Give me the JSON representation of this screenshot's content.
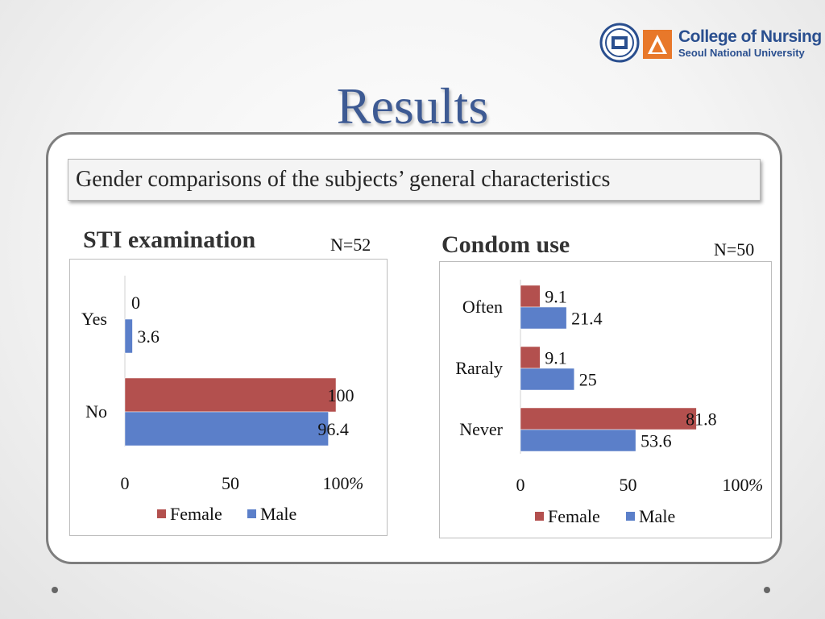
{
  "logo": {
    "line1": "College of Nursing",
    "line2": "Seoul National University"
  },
  "title": "Results",
  "subtitle": "Gender comparisons of the subjects’ general characteristics",
  "colors": {
    "female": "#b3504e",
    "male": "#5b7fc9",
    "title": "#3d5a93"
  },
  "chart_data": [
    {
      "type": "bar",
      "orientation": "horizontal",
      "title": "STI examination",
      "n_label": "N=52",
      "categories": [
        "Yes",
        "No"
      ],
      "series": [
        {
          "name": "Female",
          "values": [
            0,
            100
          ]
        },
        {
          "name": "Male",
          "values": [
            3.6,
            96.4
          ]
        }
      ],
      "data_labels": [
        [
          "0",
          "100"
        ],
        [
          "3.6",
          "96.4"
        ]
      ],
      "xlim": [
        0,
        100
      ],
      "x_ticks": [
        "0",
        "50",
        "100"
      ],
      "unit": "%",
      "legend": "bottom",
      "grid": false
    },
    {
      "type": "bar",
      "orientation": "horizontal",
      "title": "Condom use",
      "n_label": "N=50",
      "categories": [
        "Often",
        "Raraly",
        "Never"
      ],
      "series": [
        {
          "name": "Female",
          "values": [
            9.1,
            9.1,
            81.8
          ]
        },
        {
          "name": "Male",
          "values": [
            21.4,
            25,
            53.6
          ]
        }
      ],
      "data_labels": [
        [
          "9.1",
          "9.1",
          "81.8"
        ],
        [
          "21.4",
          "25",
          "53.6"
        ]
      ],
      "xlim": [
        0,
        100
      ],
      "x_ticks": [
        "0",
        "50",
        "100"
      ],
      "unit": "%",
      "legend": "bottom",
      "grid": false
    }
  ]
}
